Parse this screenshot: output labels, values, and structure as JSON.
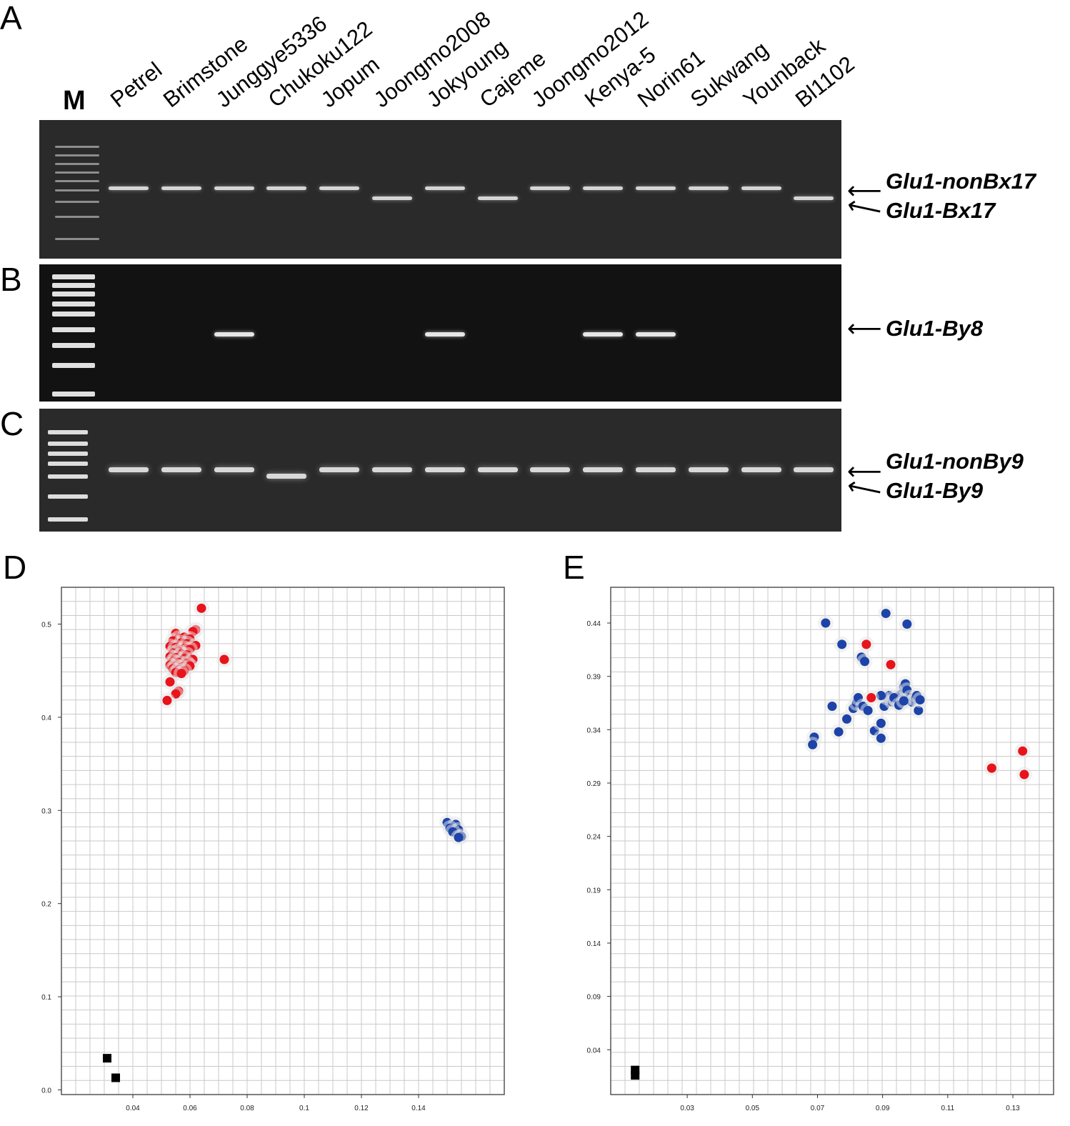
{
  "panels": {
    "A": "A",
    "B": "B",
    "C": "C",
    "D": "D",
    "E": "E"
  },
  "gel": {
    "marker": "M",
    "lanes": [
      "Petrel",
      "Brimstone",
      "Junggye5336",
      "Chukoku122",
      "Jopum",
      "Joongmo2008",
      "Jokyoung",
      "Cajeme",
      "Joongmo2012",
      "Kenya-5",
      "Norin61",
      "Sukwang",
      "Younback",
      "Bl1102"
    ],
    "gel_a": {
      "labels": [
        "Glu1-nonBx17",
        "Glu1-Bx17"
      ],
      "band_type": [
        "nonBx17",
        "nonBx17",
        "nonBx17",
        "nonBx17",
        "nonBx17",
        "Bx17",
        "nonBx17",
        "Bx17",
        "nonBx17",
        "nonBx17",
        "nonBx17",
        "nonBx17",
        "nonBx17",
        "Bx17"
      ]
    },
    "gel_b": {
      "labels": [
        "Glu1-By8"
      ],
      "band_present": [
        false,
        false,
        true,
        false,
        false,
        false,
        true,
        false,
        false,
        true,
        true,
        false,
        false,
        false
      ]
    },
    "gel_c": {
      "labels": [
        "Glu1-nonBy9",
        "Glu1-By9"
      ],
      "band_type": [
        "nonBy9",
        "nonBy9",
        "nonBy9",
        "By9",
        "nonBy9",
        "nonBy9",
        "nonBy9",
        "nonBy9",
        "nonBy9",
        "nonBy9",
        "nonBy9",
        "nonBy9",
        "nonBy9",
        "nonBy9"
      ]
    }
  },
  "chart_data": [
    {
      "type": "scatter",
      "panel": "D",
      "xlim": [
        0.015,
        0.17
      ],
      "ylim": [
        -0.005,
        0.5395
      ],
      "x_ticks": [
        "0.04",
        "0.06",
        "0.08",
        "0.1",
        "0.12",
        "0.14"
      ],
      "x_tick_values": [
        0.04,
        0.06,
        0.08,
        0.1,
        0.12,
        0.14
      ],
      "y_ticks": [
        "0.0",
        "0.1",
        "0.2",
        "0.3",
        "0.4",
        "0.5"
      ],
      "y_tick_values": [
        0.0,
        0.1,
        0.2,
        0.3,
        0.4,
        0.5
      ],
      "grid": true,
      "series": [
        {
          "color": "#e8131b",
          "marker": "circle",
          "points": [
            [
              0.064,
              0.517
            ],
            [
              0.062,
              0.494
            ],
            [
              0.061,
              0.492
            ],
            [
              0.055,
              0.49
            ],
            [
              0.056,
              0.485
            ],
            [
              0.058,
              0.486
            ],
            [
              0.06,
              0.484
            ],
            [
              0.054,
              0.482
            ],
            [
              0.057,
              0.48
            ],
            [
              0.059,
              0.479
            ],
            [
              0.062,
              0.477
            ],
            [
              0.053,
              0.476
            ],
            [
              0.055,
              0.475
            ],
            [
              0.058,
              0.474
            ],
            [
              0.06,
              0.473
            ],
            [
              0.056,
              0.471
            ],
            [
              0.054,
              0.469
            ],
            [
              0.057,
              0.468
            ],
            [
              0.059,
              0.467
            ],
            [
              0.053,
              0.465
            ],
            [
              0.055,
              0.464
            ],
            [
              0.058,
              0.463
            ],
            [
              0.061,
              0.462
            ],
            [
              0.054,
              0.46
            ],
            [
              0.056,
              0.459
            ],
            [
              0.059,
              0.458
            ],
            [
              0.053,
              0.456
            ],
            [
              0.055,
              0.455
            ],
            [
              0.057,
              0.454
            ],
            [
              0.06,
              0.455
            ],
            [
              0.054,
              0.452
            ],
            [
              0.056,
              0.451
            ],
            [
              0.058,
              0.45
            ],
            [
              0.055,
              0.448
            ],
            [
              0.057,
              0.447
            ],
            [
              0.072,
              0.462
            ],
            [
              0.053,
              0.438
            ],
            [
              0.056,
              0.428
            ],
            [
              0.055,
              0.425
            ],
            [
              0.052,
              0.418
            ]
          ]
        },
        {
          "color": "#1c43a8",
          "marker": "circle",
          "points": [
            [
              0.15,
              0.287
            ],
            [
              0.153,
              0.285
            ],
            [
              0.151,
              0.281
            ],
            [
              0.154,
              0.279
            ],
            [
              0.152,
              0.277
            ],
            [
              0.155,
              0.272
            ],
            [
              0.154,
              0.271
            ]
          ]
        },
        {
          "color": "#000000",
          "marker": "square",
          "points": [
            [
              0.031,
              0.034
            ],
            [
              0.034,
              0.013
            ]
          ]
        }
      ]
    },
    {
      "type": "scatter",
      "panel": "E",
      "xlim": [
        0.0065,
        0.1425
      ],
      "ylim": [
        -0.002,
        0.4735
      ],
      "x_ticks": [
        "0.03",
        "0.05",
        "0.07",
        "0.09",
        "0.11",
        "0.13"
      ],
      "x_tick_values": [
        0.03,
        0.05,
        0.07,
        0.09,
        0.11,
        0.13
      ],
      "y_ticks": [
        "0.04",
        "0.09",
        "0.14",
        "0.19",
        "0.24",
        "0.29",
        "0.34",
        "0.39",
        "0.44"
      ],
      "y_tick_values": [
        0.04,
        0.09,
        0.14,
        0.19,
        0.24,
        0.29,
        0.34,
        0.39,
        0.44
      ],
      "grid": true,
      "series": [
        {
          "color": "#1c43a8",
          "marker": "circle",
          "points": [
            [
              0.0725,
              0.44
            ],
            [
              0.091,
              0.449
            ],
            [
              0.0975,
              0.439
            ],
            [
              0.0775,
              0.42
            ],
            [
              0.0835,
              0.408
            ],
            [
              0.0845,
              0.404
            ],
            [
              0.0745,
              0.362
            ],
            [
              0.069,
              0.333
            ],
            [
              0.0685,
              0.326
            ],
            [
              0.0765,
              0.338
            ],
            [
              0.079,
              0.35
            ],
            [
              0.081,
              0.36
            ],
            [
              0.082,
              0.365
            ],
            [
              0.0825,
              0.37
            ],
            [
              0.084,
              0.362
            ],
            [
              0.0855,
              0.358
            ],
            [
              0.0875,
              0.339
            ],
            [
              0.0895,
              0.346
            ],
            [
              0.0895,
              0.332
            ],
            [
              0.0905,
              0.362
            ],
            [
              0.0915,
              0.37
            ],
            [
              0.092,
              0.372
            ],
            [
              0.093,
              0.366
            ],
            [
              0.094,
              0.368
            ],
            [
              0.095,
              0.372
            ],
            [
              0.0955,
              0.365
            ],
            [
              0.096,
              0.374
            ],
            [
              0.0965,
              0.38
            ],
            [
              0.097,
              0.383
            ],
            [
              0.0975,
              0.377
            ],
            [
              0.0985,
              0.37
            ],
            [
              0.099,
              0.366
            ],
            [
              0.1,
              0.369
            ],
            [
              0.1005,
              0.372
            ],
            [
              0.101,
              0.358
            ],
            [
              0.1015,
              0.368
            ],
            [
              0.0895,
              0.372
            ],
            [
              0.0935,
              0.37
            ],
            [
              0.095,
              0.363
            ],
            [
              0.0965,
              0.367
            ]
          ]
        },
        {
          "color": "#e8131b",
          "marker": "circle",
          "points": [
            [
              0.085,
              0.42
            ],
            [
              0.0925,
              0.401
            ],
            [
              0.0865,
              0.37
            ],
            [
              0.1235,
              0.304
            ],
            [
              0.133,
              0.32
            ],
            [
              0.1335,
              0.298
            ]
          ]
        },
        {
          "color": "#000000",
          "marker": "square",
          "points": [
            [
              0.014,
              0.016
            ],
            [
              0.014,
              0.021
            ]
          ]
        }
      ]
    }
  ]
}
